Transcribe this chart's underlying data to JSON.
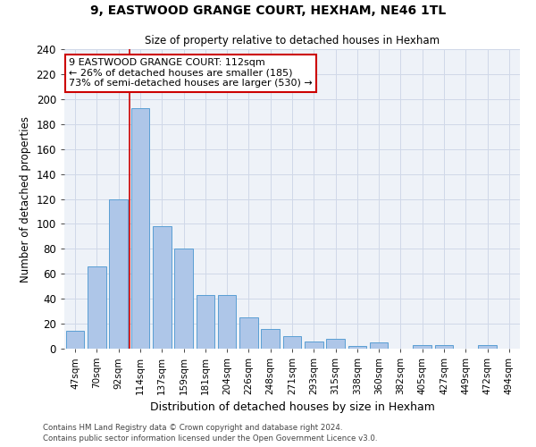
{
  "title1": "9, EASTWOOD GRANGE COURT, HEXHAM, NE46 1TL",
  "title2": "Size of property relative to detached houses in Hexham",
  "xlabel": "Distribution of detached houses by size in Hexham",
  "ylabel": "Number of detached properties",
  "categories": [
    "47sqm",
    "70sqm",
    "92sqm",
    "114sqm",
    "137sqm",
    "159sqm",
    "181sqm",
    "204sqm",
    "226sqm",
    "248sqm",
    "271sqm",
    "293sqm",
    "315sqm",
    "338sqm",
    "360sqm",
    "382sqm",
    "405sqm",
    "427sqm",
    "449sqm",
    "472sqm",
    "494sqm"
  ],
  "values": [
    14,
    66,
    120,
    193,
    98,
    80,
    43,
    43,
    25,
    16,
    10,
    6,
    8,
    2,
    5,
    0,
    3,
    3,
    0,
    3,
    0
  ],
  "bar_color": "#aec6e8",
  "bar_edge_color": "#5a9fd4",
  "annotation_line1": "9 EASTWOOD GRANGE COURT: 112sqm",
  "annotation_line2": "← 26% of detached houses are smaller (185)",
  "annotation_line3": "73% of semi-detached houses are larger (530) →",
  "annotation_box_color": "#ffffff",
  "annotation_box_edge_color": "#cc0000",
  "red_line_x": 2.5,
  "ylim": [
    0,
    240
  ],
  "yticks": [
    0,
    20,
    40,
    60,
    80,
    100,
    120,
    140,
    160,
    180,
    200,
    220,
    240
  ],
  "grid_color": "#d0d8e8",
  "background_color": "#eef2f8",
  "footnote1": "Contains HM Land Registry data © Crown copyright and database right 2024.",
  "footnote2": "Contains public sector information licensed under the Open Government Licence v3.0."
}
